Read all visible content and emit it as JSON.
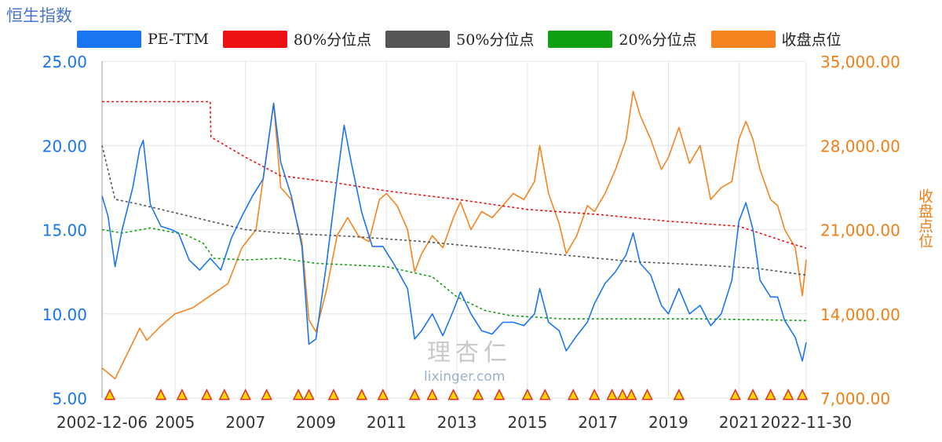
{
  "chart_title": "恒生指数",
  "legend": {
    "pe": "PE-TTM",
    "p80": "80%分位点",
    "p50": "50%分位点",
    "p20": "20%分位点",
    "close": "收盘点位"
  },
  "colors": {
    "pe": "#1a75f0",
    "p80": "#ee1111",
    "p50": "#555555",
    "p20": "#11a011",
    "close": "#f5841f",
    "axis_left": "#1a75f0",
    "axis_right": "#f07f17"
  },
  "watermark": {
    "cn": "理杏仁",
    "url": "lixinger.com"
  },
  "chart_data": {
    "type": "line",
    "title": "恒生指数",
    "x_range": [
      2002.93,
      2022.91
    ],
    "x_ticks": [
      {
        "value": 2002.93,
        "label": "2002-12-06"
      },
      {
        "value": 2005,
        "label": "2005"
      },
      {
        "value": 2007,
        "label": "2007"
      },
      {
        "value": 2009,
        "label": "2009"
      },
      {
        "value": 2011,
        "label": "2011"
      },
      {
        "value": 2013,
        "label": "2013"
      },
      {
        "value": 2015,
        "label": "2015"
      },
      {
        "value": 2017,
        "label": "2017"
      },
      {
        "value": 2019,
        "label": "2019"
      },
      {
        "value": 2021,
        "label": "2021"
      },
      {
        "value": 2022.91,
        "label": "2022-11-30"
      }
    ],
    "y_left": {
      "min": 5,
      "max": 25,
      "ticks": [
        "25.00",
        "20.00",
        "15.00",
        "10.00",
        "5.00"
      ],
      "label": ""
    },
    "y_right": {
      "min": 7000,
      "max": 35000,
      "ticks": [
        "35,000.00",
        "28,000.00",
        "21,000.00",
        "14,000.00",
        "7,000.00"
      ],
      "label": "收盘点位"
    },
    "series": [
      {
        "name": "PE-TTM",
        "axis": "left",
        "points": [
          [
            2002.93,
            17.0
          ],
          [
            2003.1,
            15.8
          ],
          [
            2003.3,
            12.8
          ],
          [
            2003.5,
            15.0
          ],
          [
            2003.8,
            17.5
          ],
          [
            2004.0,
            19.8
          ],
          [
            2004.1,
            20.3
          ],
          [
            2004.3,
            16.5
          ],
          [
            2004.6,
            15.2
          ],
          [
            2004.9,
            15.0
          ],
          [
            2005.1,
            14.8
          ],
          [
            2005.4,
            13.2
          ],
          [
            2005.7,
            12.6
          ],
          [
            2006.0,
            13.3
          ],
          [
            2006.3,
            12.6
          ],
          [
            2006.6,
            14.5
          ],
          [
            2006.9,
            15.8
          ],
          [
            2007.2,
            17.0
          ],
          [
            2007.5,
            18.0
          ],
          [
            2007.8,
            22.5
          ],
          [
            2008.0,
            19.0
          ],
          [
            2008.3,
            17.0
          ],
          [
            2008.6,
            14.0
          ],
          [
            2008.8,
            8.2
          ],
          [
            2009.0,
            8.5
          ],
          [
            2009.3,
            13.0
          ],
          [
            2009.6,
            18.0
          ],
          [
            2009.8,
            21.2
          ],
          [
            2010.0,
            19.0
          ],
          [
            2010.3,
            16.0
          ],
          [
            2010.6,
            14.0
          ],
          [
            2010.9,
            14.0
          ],
          [
            2011.2,
            13.0
          ],
          [
            2011.6,
            11.5
          ],
          [
            2011.8,
            8.5
          ],
          [
            2012.0,
            9.0
          ],
          [
            2012.3,
            10.0
          ],
          [
            2012.6,
            8.7
          ],
          [
            2012.9,
            10.2
          ],
          [
            2013.1,
            11.3
          ],
          [
            2013.4,
            10.0
          ],
          [
            2013.7,
            9.0
          ],
          [
            2014.0,
            8.8
          ],
          [
            2014.3,
            9.5
          ],
          [
            2014.6,
            9.5
          ],
          [
            2014.9,
            9.3
          ],
          [
            2015.2,
            10.0
          ],
          [
            2015.35,
            11.5
          ],
          [
            2015.6,
            9.5
          ],
          [
            2015.9,
            9.0
          ],
          [
            2016.1,
            7.8
          ],
          [
            2016.4,
            8.7
          ],
          [
            2016.7,
            9.5
          ],
          [
            2016.9,
            10.6
          ],
          [
            2017.2,
            11.8
          ],
          [
            2017.5,
            12.5
          ],
          [
            2017.8,
            13.5
          ],
          [
            2018.0,
            14.8
          ],
          [
            2018.2,
            13.0
          ],
          [
            2018.5,
            12.3
          ],
          [
            2018.8,
            10.5
          ],
          [
            2019.0,
            10.0
          ],
          [
            2019.3,
            11.5
          ],
          [
            2019.6,
            10.0
          ],
          [
            2019.9,
            10.5
          ],
          [
            2020.2,
            9.3
          ],
          [
            2020.5,
            10.0
          ],
          [
            2020.8,
            12.0
          ],
          [
            2021.0,
            15.5
          ],
          [
            2021.2,
            16.6
          ],
          [
            2021.4,
            15.0
          ],
          [
            2021.6,
            12.0
          ],
          [
            2021.9,
            11.0
          ],
          [
            2022.1,
            11.0
          ],
          [
            2022.3,
            9.6
          ],
          [
            2022.6,
            8.6
          ],
          [
            2022.8,
            7.2
          ],
          [
            2022.91,
            8.3
          ]
        ]
      },
      {
        "name": "80%分位点",
        "axis": "left",
        "dashed": true,
        "points": [
          [
            2002.93,
            22.6
          ],
          [
            2006.0,
            22.6
          ],
          [
            2006.02,
            20.5
          ],
          [
            2007.0,
            19.3
          ],
          [
            2008.0,
            18.2
          ],
          [
            2009.5,
            17.8
          ],
          [
            2011.0,
            17.3
          ],
          [
            2013.0,
            16.8
          ],
          [
            2015.0,
            16.2
          ],
          [
            2017.0,
            15.9
          ],
          [
            2019.0,
            15.5
          ],
          [
            2021.0,
            15.2
          ],
          [
            2022.3,
            14.3
          ],
          [
            2022.91,
            13.9
          ]
        ]
      },
      {
        "name": "50%分位点",
        "axis": "left",
        "dashed": true,
        "points": [
          [
            2002.93,
            20.0
          ],
          [
            2003.3,
            16.8
          ],
          [
            2004.0,
            16.5
          ],
          [
            2005.0,
            16.0
          ],
          [
            2006.0,
            15.5
          ],
          [
            2007.0,
            15.0
          ],
          [
            2008.0,
            14.8
          ],
          [
            2010.0,
            14.6
          ],
          [
            2012.0,
            14.3
          ],
          [
            2014.0,
            13.9
          ],
          [
            2016.0,
            13.5
          ],
          [
            2018.0,
            13.1
          ],
          [
            2020.0,
            12.9
          ],
          [
            2021.5,
            12.7
          ],
          [
            2022.91,
            12.3
          ]
        ]
      },
      {
        "name": "20%分位点",
        "axis": "left",
        "dashed": true,
        "points": [
          [
            2002.93,
            15.0
          ],
          [
            2003.5,
            14.8
          ],
          [
            2004.3,
            15.1
          ],
          [
            2005.3,
            14.7
          ],
          [
            2005.8,
            14.2
          ],
          [
            2006.1,
            13.3
          ],
          [
            2007.0,
            13.2
          ],
          [
            2008.0,
            13.3
          ],
          [
            2009.0,
            13.0
          ],
          [
            2011.0,
            12.8
          ],
          [
            2012.3,
            12.2
          ],
          [
            2013.0,
            11.0
          ],
          [
            2013.8,
            10.2
          ],
          [
            2014.5,
            9.9
          ],
          [
            2016.0,
            9.7
          ],
          [
            2018.0,
            9.7
          ],
          [
            2020.0,
            9.7
          ],
          [
            2022.91,
            9.6
          ]
        ]
      },
      {
        "name": "收盘点位",
        "axis": "right",
        "points": [
          [
            2002.93,
            9500
          ],
          [
            2003.3,
            8600
          ],
          [
            2003.7,
            11000
          ],
          [
            2004.0,
            12800
          ],
          [
            2004.2,
            11800
          ],
          [
            2004.6,
            13000
          ],
          [
            2005.0,
            14000
          ],
          [
            2005.5,
            14500
          ],
          [
            2006.0,
            15500
          ],
          [
            2006.5,
            16500
          ],
          [
            2006.9,
            19500
          ],
          [
            2007.3,
            21000
          ],
          [
            2007.8,
            31500
          ],
          [
            2008.0,
            24500
          ],
          [
            2008.3,
            23500
          ],
          [
            2008.6,
            20000
          ],
          [
            2008.8,
            13500
          ],
          [
            2009.0,
            12500
          ],
          [
            2009.3,
            16000
          ],
          [
            2009.6,
            20500
          ],
          [
            2009.9,
            22000
          ],
          [
            2010.2,
            20500
          ],
          [
            2010.5,
            20000
          ],
          [
            2010.8,
            23500
          ],
          [
            2011.0,
            24000
          ],
          [
            2011.3,
            23000
          ],
          [
            2011.6,
            21000
          ],
          [
            2011.8,
            17500
          ],
          [
            2012.0,
            19000
          ],
          [
            2012.3,
            20500
          ],
          [
            2012.6,
            19500
          ],
          [
            2012.9,
            22000
          ],
          [
            2013.1,
            23300
          ],
          [
            2013.4,
            21000
          ],
          [
            2013.7,
            22500
          ],
          [
            2014.0,
            22000
          ],
          [
            2014.3,
            23000
          ],
          [
            2014.6,
            24000
          ],
          [
            2014.9,
            23500
          ],
          [
            2015.2,
            25000
          ],
          [
            2015.35,
            28000
          ],
          [
            2015.6,
            24000
          ],
          [
            2015.9,
            21500
          ],
          [
            2016.1,
            19000
          ],
          [
            2016.4,
            20500
          ],
          [
            2016.7,
            23000
          ],
          [
            2016.9,
            22500
          ],
          [
            2017.2,
            24000
          ],
          [
            2017.5,
            26000
          ],
          [
            2017.8,
            28500
          ],
          [
            2018.0,
            32500
          ],
          [
            2018.2,
            30500
          ],
          [
            2018.5,
            28500
          ],
          [
            2018.8,
            26000
          ],
          [
            2019.0,
            27000
          ],
          [
            2019.3,
            29500
          ],
          [
            2019.6,
            26500
          ],
          [
            2019.9,
            28000
          ],
          [
            2020.2,
            23500
          ],
          [
            2020.5,
            24500
          ],
          [
            2020.8,
            25000
          ],
          [
            2021.0,
            28500
          ],
          [
            2021.2,
            30000
          ],
          [
            2021.4,
            28500
          ],
          [
            2021.6,
            26000
          ],
          [
            2021.9,
            23500
          ],
          [
            2022.1,
            23000
          ],
          [
            2022.3,
            21000
          ],
          [
            2022.6,
            19500
          ],
          [
            2022.8,
            15500
          ],
          [
            2022.91,
            18500
          ]
        ]
      }
    ],
    "markers": {
      "shape": "triangle",
      "value": 5.2,
      "x": [
        2003.15,
        2004.6,
        2005.2,
        2005.9,
        2006.4,
        2007.0,
        2007.6,
        2008.5,
        2008.8,
        2009.5,
        2010.3,
        2010.9,
        2011.8,
        2012.3,
        2012.9,
        2013.6,
        2014.2,
        2015.0,
        2015.5,
        2016.3,
        2016.9,
        2017.4,
        2017.7,
        2017.95,
        2018.4,
        2019.3,
        2020.9,
        2021.4,
        2021.9,
        2022.4,
        2022.8
      ]
    }
  }
}
